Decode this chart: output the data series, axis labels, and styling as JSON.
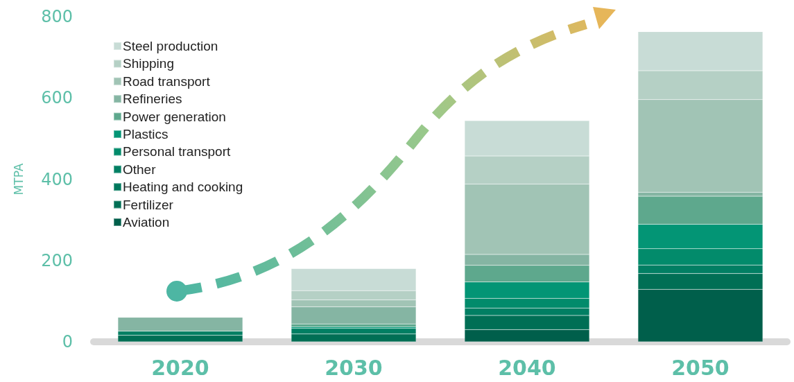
{
  "chart_data": {
    "type": "bar",
    "stacked": true,
    "ylabel": "MTPA",
    "categories": [
      "2020",
      "2030",
      "2040",
      "2050"
    ],
    "series": [
      {
        "name": "Aviation",
        "color": "#005f4b",
        "values": [
          null,
          null,
          30,
          129
        ]
      },
      {
        "name": "Fertilizer",
        "color": "#006f55",
        "values": [
          16,
          19,
          35,
          39
        ]
      },
      {
        "name": "Heating and cooking",
        "color": "#00785d",
        "values": [
          null,
          null,
          null,
          null
        ]
      },
      {
        "name": "Other",
        "color": "#017f63",
        "values": [
          10,
          14,
          18,
          21
        ]
      },
      {
        "name": "Personal transport",
        "color": "#028b6b",
        "values": [
          null,
          null,
          24,
          40
        ]
      },
      {
        "name": "Plastics",
        "color": "#039575",
        "values": [
          null,
          4,
          40,
          60
        ]
      },
      {
        "name": "Power generation",
        "color": "#5ea88d",
        "values": [
          null,
          7,
          41,
          69
        ]
      },
      {
        "name": "Refineries",
        "color": "#85b5a3",
        "values": [
          34,
          42,
          27,
          10
        ]
      },
      {
        "name": "Road transport",
        "color": "#a1c4b5",
        "values": [
          null,
          17,
          173,
          228
        ]
      },
      {
        "name": "Shipping",
        "color": "#b5d0c5",
        "values": [
          null,
          23,
          69,
          71
        ]
      },
      {
        "name": "Steel production",
        "color": "#c8dcd6",
        "values": [
          null,
          54,
          87,
          96
        ]
      }
    ],
    "ylim": [
      0,
      800
    ],
    "yticks": [
      0,
      200,
      400,
      600,
      800
    ],
    "grid": false,
    "legend": "top left"
  }
}
